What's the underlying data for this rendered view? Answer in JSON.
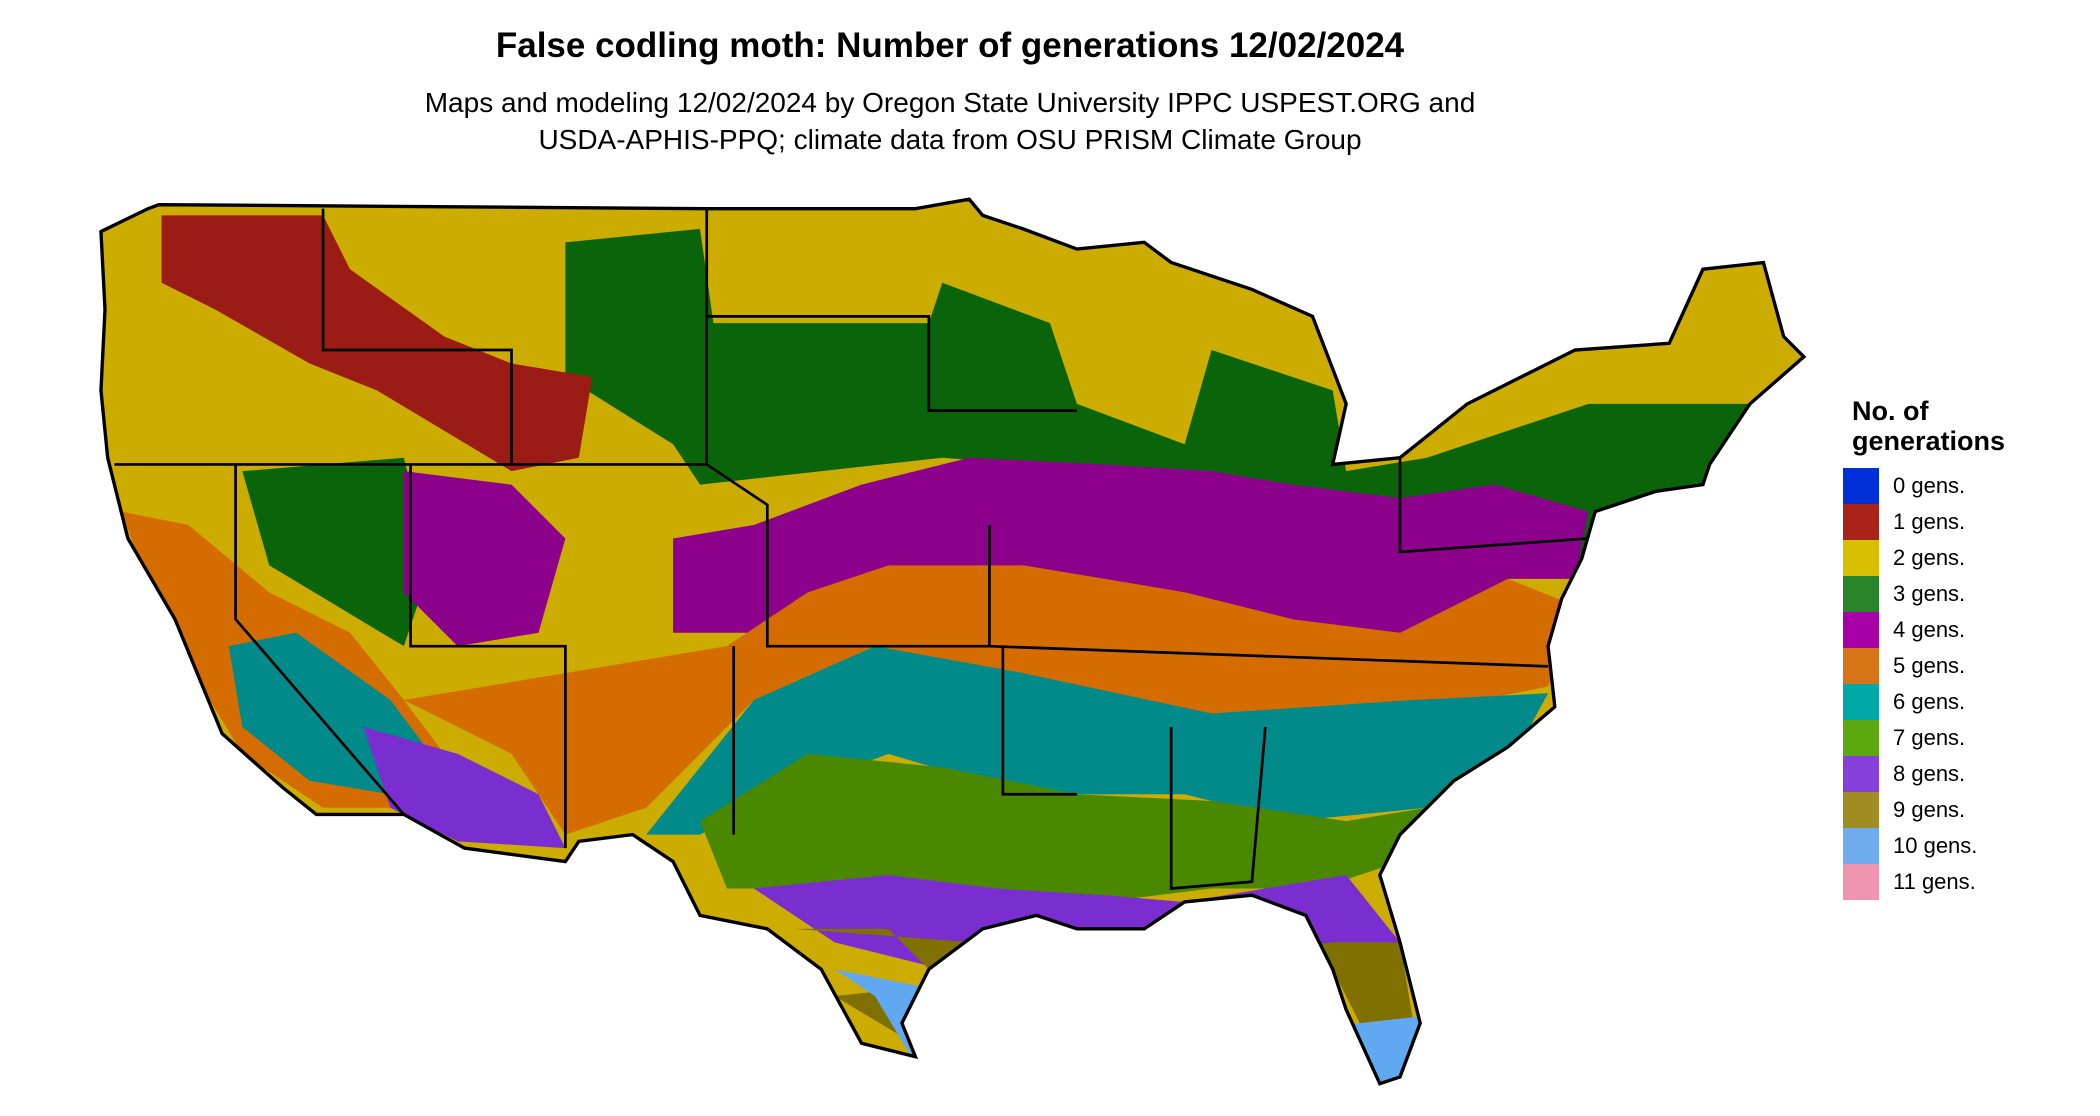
{
  "title": "False codling moth: Number of generations 12/02/2024",
  "subtitle_line1": "Maps and modeling 12/02/2024 by Oregon State University IPPC USPEST.ORG and",
  "subtitle_line2": "USDA-APHIS-PPQ; climate data from OSU PRISM Climate Group",
  "legend": {
    "title": "No. of generations",
    "items": [
      {
        "label": "0 gens.",
        "color": "#0030d8"
      },
      {
        "label": "1 gens.",
        "color": "#a82418"
      },
      {
        "label": "2 gens.",
        "color": "#d8c000"
      },
      {
        "label": "3 gens.",
        "color": "#288428"
      },
      {
        "label": "4 gens.",
        "color": "#a800a8"
      },
      {
        "label": "5 gens.",
        "color": "#d87418"
      },
      {
        "label": "6 gens.",
        "color": "#00a8a8"
      },
      {
        "label": "7 gens.",
        "color": "#5ca810"
      },
      {
        "label": "8 gens.",
        "color": "#8440d8"
      },
      {
        "label": "9 gens.",
        "color": "#a08c20"
      },
      {
        "label": "10 gens.",
        "color": "#70acf0"
      },
      {
        "label": "11 gens.",
        "color": "#f094b0"
      }
    ]
  }
}
